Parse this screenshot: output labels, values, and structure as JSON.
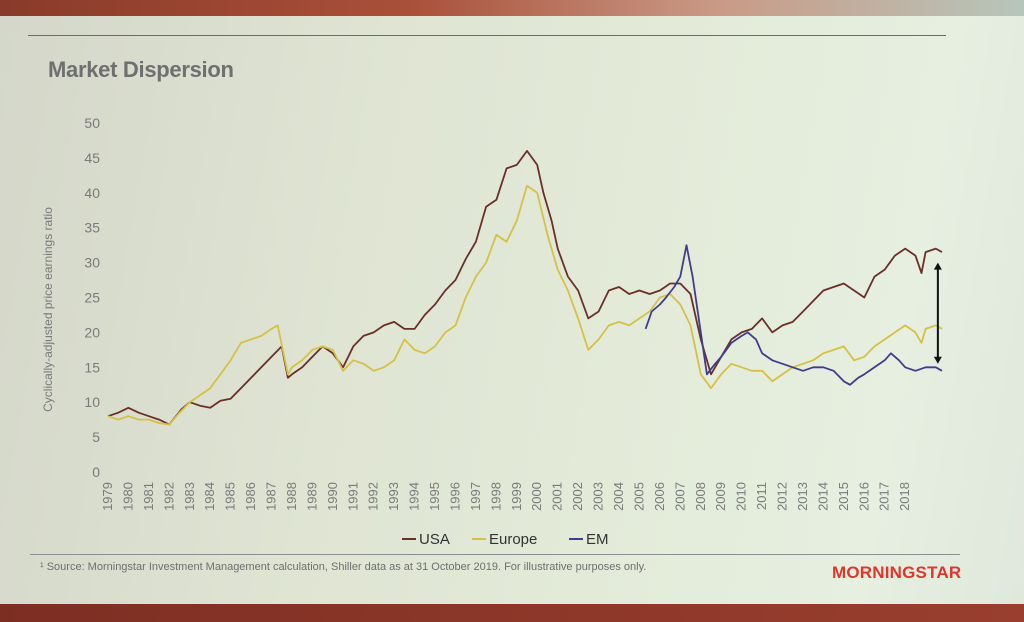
{
  "slide": {
    "title": "Market Dispersion",
    "source_note": "¹ Source: Morningstar Investment Management calculation, Shiller data as at 31 October 2019. For illustrative purposes only.",
    "logo_text": "MORNINGSTAR"
  },
  "colors": {
    "usa": "#6b2f2a",
    "europe": "#d6c048",
    "em": "#3f3d8e",
    "axis_text": "#7a7a7a"
  },
  "chart_data": {
    "type": "line",
    "title": "",
    "ylabel": "Cyclically-adjusted price earnings ratio",
    "xlabel": "",
    "ylim": [
      0,
      50
    ],
    "xlim": [
      1979,
      2019.9
    ],
    "yticks": [
      "0",
      "5",
      "10",
      "15",
      "20",
      "25",
      "30",
      "35",
      "40",
      "45",
      "50"
    ],
    "xticks": [
      "1979",
      "1980",
      "1981",
      "1982",
      "1983",
      "1984",
      "1985",
      "1986",
      "1987",
      "1988",
      "1989",
      "1990",
      "1991",
      "1992",
      "1993",
      "1994",
      "1995",
      "1996",
      "1997",
      "1998",
      "1999",
      "2000",
      "2001",
      "2002",
      "2003",
      "2004",
      "2005",
      "2006",
      "2007",
      "2008",
      "2009",
      "2010",
      "2011",
      "2012",
      "2013",
      "2014",
      "2015",
      "2016",
      "2017",
      "2018"
    ],
    "grid": false,
    "legend": "bottom",
    "series": [
      {
        "name": "USA",
        "points": [
          [
            1979,
            8
          ],
          [
            1979.5,
            8.5
          ],
          [
            1980,
            9.2
          ],
          [
            1980.5,
            8.5
          ],
          [
            1981,
            8
          ],
          [
            1981.5,
            7.5
          ],
          [
            1982,
            6.8
          ],
          [
            1982.6,
            9
          ],
          [
            1983,
            10
          ],
          [
            1983.5,
            9.5
          ],
          [
            1984,
            9.2
          ],
          [
            1984.5,
            10.2
          ],
          [
            1985,
            10.5
          ],
          [
            1985.5,
            12
          ],
          [
            1986,
            13.5
          ],
          [
            1986.5,
            15
          ],
          [
            1987,
            16.5
          ],
          [
            1987.5,
            18
          ],
          [
            1987.8,
            13.5
          ],
          [
            1988,
            14
          ],
          [
            1988.5,
            15
          ],
          [
            1989,
            16.5
          ],
          [
            1989.5,
            18
          ],
          [
            1990,
            17
          ],
          [
            1990.5,
            15
          ],
          [
            1991,
            18
          ],
          [
            1991.5,
            19.5
          ],
          [
            1992,
            20
          ],
          [
            1992.5,
            21
          ],
          [
            1993,
            21.5
          ],
          [
            1993.5,
            20.5
          ],
          [
            1994,
            20.5
          ],
          [
            1994.5,
            22.5
          ],
          [
            1995,
            24
          ],
          [
            1995.5,
            26
          ],
          [
            1996,
            27.5
          ],
          [
            1996.5,
            30.5
          ],
          [
            1997,
            33
          ],
          [
            1997.5,
            38
          ],
          [
            1998,
            39
          ],
          [
            1998.5,
            43.5
          ],
          [
            1999,
            44
          ],
          [
            1999.5,
            46
          ],
          [
            2000,
            44
          ],
          [
            2000.3,
            40
          ],
          [
            2000.7,
            36
          ],
          [
            2001,
            32
          ],
          [
            2001.5,
            28
          ],
          [
            2002,
            26
          ],
          [
            2002.5,
            22
          ],
          [
            2003,
            23
          ],
          [
            2003.5,
            26
          ],
          [
            2004,
            26.5
          ],
          [
            2004.5,
            25.5
          ],
          [
            2005,
            26
          ],
          [
            2005.5,
            25.5
          ],
          [
            2006,
            26
          ],
          [
            2006.5,
            27
          ],
          [
            2007,
            27
          ],
          [
            2007.5,
            25.5
          ],
          [
            2008,
            19
          ],
          [
            2008.5,
            14
          ],
          [
            2009,
            16.5
          ],
          [
            2009.5,
            19
          ],
          [
            2010,
            20
          ],
          [
            2010.5,
            20.5
          ],
          [
            2011,
            22
          ],
          [
            2011.5,
            20
          ],
          [
            2012,
            21
          ],
          [
            2012.5,
            21.5
          ],
          [
            2013,
            23
          ],
          [
            2013.5,
            24.5
          ],
          [
            2014,
            26
          ],
          [
            2014.5,
            26.5
          ],
          [
            2015,
            27
          ],
          [
            2015.5,
            26
          ],
          [
            2016,
            25
          ],
          [
            2016.5,
            28
          ],
          [
            2017,
            29
          ],
          [
            2017.5,
            31
          ],
          [
            2018,
            32
          ],
          [
            2018.5,
            31
          ],
          [
            2018.8,
            28.5
          ],
          [
            2019,
            31.5
          ],
          [
            2019.5,
            32
          ],
          [
            2019.8,
            31.5
          ]
        ]
      },
      {
        "name": "Europe",
        "points": [
          [
            1979,
            8
          ],
          [
            1979.5,
            7.5
          ],
          [
            1980,
            8
          ],
          [
            1980.5,
            7.5
          ],
          [
            1981,
            7.5
          ],
          [
            1981.5,
            7
          ],
          [
            1982,
            6.8
          ],
          [
            1982.5,
            8.5
          ],
          [
            1983,
            10
          ],
          [
            1983.5,
            11
          ],
          [
            1984,
            12
          ],
          [
            1984.5,
            14
          ],
          [
            1985,
            16
          ],
          [
            1985.5,
            18.5
          ],
          [
            1986,
            19
          ],
          [
            1986.5,
            19.5
          ],
          [
            1987,
            20.5
          ],
          [
            1987.3,
            21
          ],
          [
            1987.8,
            14
          ],
          [
            1988,
            15
          ],
          [
            1988.5,
            16
          ],
          [
            1989,
            17.5
          ],
          [
            1989.5,
            18
          ],
          [
            1990,
            17.5
          ],
          [
            1990.5,
            14.5
          ],
          [
            1991,
            16
          ],
          [
            1991.5,
            15.5
          ],
          [
            1992,
            14.5
          ],
          [
            1992.5,
            15
          ],
          [
            1993,
            16
          ],
          [
            1993.5,
            19
          ],
          [
            1994,
            17.5
          ],
          [
            1994.5,
            17
          ],
          [
            1995,
            18
          ],
          [
            1995.5,
            20
          ],
          [
            1996,
            21
          ],
          [
            1996.5,
            25
          ],
          [
            1997,
            28
          ],
          [
            1997.5,
            30
          ],
          [
            1998,
            34
          ],
          [
            1998.5,
            33
          ],
          [
            1999,
            36
          ],
          [
            1999.5,
            41
          ],
          [
            2000,
            40
          ],
          [
            2000.5,
            34
          ],
          [
            2001,
            29
          ],
          [
            2001.5,
            26
          ],
          [
            2002,
            22
          ],
          [
            2002.5,
            17.5
          ],
          [
            2003,
            19
          ],
          [
            2003.5,
            21
          ],
          [
            2004,
            21.5
          ],
          [
            2004.5,
            21
          ],
          [
            2005,
            22
          ],
          [
            2005.5,
            23
          ],
          [
            2006,
            25
          ],
          [
            2006.5,
            25.5
          ],
          [
            2007,
            24
          ],
          [
            2007.5,
            21
          ],
          [
            2008,
            14
          ],
          [
            2008.5,
            12
          ],
          [
            2009,
            14
          ],
          [
            2009.5,
            15.5
          ],
          [
            2010,
            15
          ],
          [
            2010.5,
            14.5
          ],
          [
            2011,
            14.5
          ],
          [
            2011.5,
            13
          ],
          [
            2012,
            14
          ],
          [
            2012.5,
            15
          ],
          [
            2013,
            15.5
          ],
          [
            2013.5,
            16
          ],
          [
            2014,
            17
          ],
          [
            2014.5,
            17.5
          ],
          [
            2015,
            18
          ],
          [
            2015.5,
            16
          ],
          [
            2016,
            16.5
          ],
          [
            2016.5,
            18
          ],
          [
            2017,
            19
          ],
          [
            2017.5,
            20
          ],
          [
            2018,
            21
          ],
          [
            2018.5,
            20
          ],
          [
            2018.8,
            18.5
          ],
          [
            2019,
            20.5
          ],
          [
            2019.5,
            21
          ],
          [
            2019.8,
            20.5
          ]
        ]
      },
      {
        "name": "EM",
        "points": [
          [
            2005.3,
            20.5
          ],
          [
            2005.6,
            23
          ],
          [
            2006,
            24
          ],
          [
            2006.3,
            25
          ],
          [
            2006.7,
            26.5
          ],
          [
            2007,
            28
          ],
          [
            2007.3,
            32.5
          ],
          [
            2007.6,
            28
          ],
          [
            2008,
            20
          ],
          [
            2008.3,
            14
          ],
          [
            2008.7,
            15.5
          ],
          [
            2009,
            16.5
          ],
          [
            2009.5,
            18.5
          ],
          [
            2010,
            19.5
          ],
          [
            2010.3,
            20
          ],
          [
            2010.7,
            19
          ],
          [
            2011,
            17
          ],
          [
            2011.5,
            16
          ],
          [
            2012,
            15.5
          ],
          [
            2012.5,
            15
          ],
          [
            2013,
            14.5
          ],
          [
            2013.5,
            15
          ],
          [
            2014,
            15
          ],
          [
            2014.5,
            14.5
          ],
          [
            2015,
            13
          ],
          [
            2015.3,
            12.5
          ],
          [
            2015.7,
            13.5
          ],
          [
            2016,
            14
          ],
          [
            2016.5,
            15
          ],
          [
            2017,
            16
          ],
          [
            2017.3,
            17
          ],
          [
            2017.7,
            16
          ],
          [
            2018,
            15
          ],
          [
            2018.5,
            14.5
          ],
          [
            2019,
            15
          ],
          [
            2019.5,
            15
          ],
          [
            2019.8,
            14.5
          ]
        ]
      }
    ],
    "annotation": "dispersion arrow between USA (~30) and EM (~15) at 2019.6"
  }
}
